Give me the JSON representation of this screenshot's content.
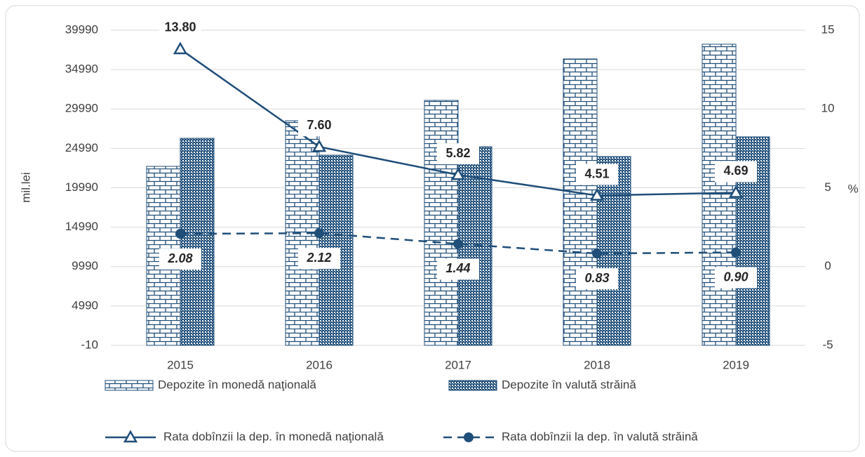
{
  "chart_data": {
    "type": "bar",
    "y_label": "mil.lei",
    "y2_label": "%",
    "categories": [
      "2015",
      "2016",
      "2017",
      "2018",
      "2019"
    ],
    "ylim": [
      -10,
      39990
    ],
    "yticks": [
      -10,
      4990,
      9990,
      14990,
      19990,
      24990,
      29990,
      34990,
      39990
    ],
    "y2lim": [
      -5,
      15
    ],
    "y2ticks": [
      -5,
      0,
      5,
      10,
      15
    ],
    "grid": true,
    "series": [
      {
        "name": "Depozite în monedă naţională",
        "type": "bar",
        "pattern": "brick",
        "color": "#1f4e79",
        "values": [
          22710,
          28500,
          31080,
          36340,
          38210
        ]
      },
      {
        "name": "Depozite în valută străină",
        "type": "bar",
        "pattern": "checker",
        "color": "#1f4e79",
        "values": [
          26270,
          24130,
          25200,
          23950,
          26450
        ]
      },
      {
        "name": "Rata dobînzii la dep. în monedă naţională",
        "type": "line",
        "axis": "y2",
        "marker": "triangle",
        "dashed": false,
        "color": "#1f4e79",
        "values": [
          13.8,
          7.6,
          5.82,
          4.51,
          4.69
        ],
        "value_labels": [
          "13.80",
          "7.60",
          "5.82",
          "4.51",
          "4.69"
        ]
      },
      {
        "name": "Rata dobînzii la dep. în valută străină",
        "type": "line",
        "axis": "y2",
        "marker": "circle",
        "dashed": true,
        "color": "#1f4e79",
        "values": [
          2.08,
          2.12,
          1.44,
          0.83,
          0.9
        ],
        "value_labels": [
          "2.08",
          "2.12",
          "1.44",
          "0.83",
          "0.90"
        ]
      }
    ]
  }
}
